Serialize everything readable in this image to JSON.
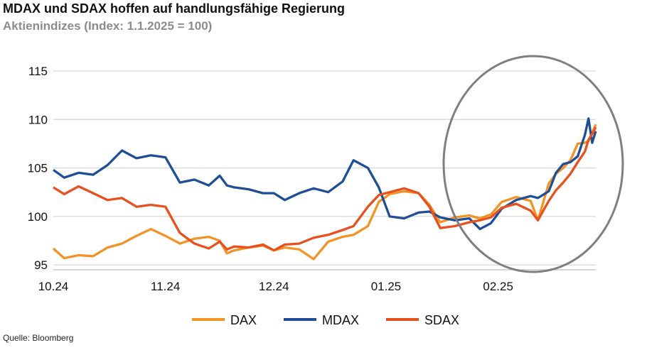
{
  "title": "MDAX und SDAX hoffen auf handlungsfähige Regierung",
  "subtitle": "Aktienindizes (Index: 1.1.2025 = 100)",
  "source": "Quelle: Bloomberg",
  "colors": {
    "DAX": "#f39325",
    "MDAX": "#1f4e96",
    "SDAX": "#e8501e",
    "grid": "#d9d9d9",
    "circle": "#7f7f7f"
  },
  "chart_data": {
    "type": "line",
    "title": "MDAX und SDAX hoffen auf handlungsfähige Regierung",
    "xlabel": "",
    "ylabel": "",
    "x_start": "2024-10-01",
    "x_end": "2025-02-28",
    "x_ticks": [
      {
        "date": "2024-10-01",
        "label": "10.24"
      },
      {
        "date": "2024-11-01",
        "label": "11.24"
      },
      {
        "date": "2024-12-01",
        "label": "12.24"
      },
      {
        "date": "2025-01-01",
        "label": "01.25"
      },
      {
        "date": "2025-02-01",
        "label": "02.25"
      }
    ],
    "y_ticks": [
      95,
      100,
      105,
      110,
      115
    ],
    "ylim": [
      94.5,
      115
    ],
    "grid": "horizontal",
    "legend": "bottom",
    "annotation": "ellipse highlighting February 2025",
    "series": [
      {
        "name": "DAX",
        "color": "#f39325",
        "points": [
          [
            "2024-10-01",
            96.7
          ],
          [
            "2024-10-04",
            95.7
          ],
          [
            "2024-10-08",
            96.0
          ],
          [
            "2024-10-12",
            95.9
          ],
          [
            "2024-10-16",
            96.8
          ],
          [
            "2024-10-20",
            97.2
          ],
          [
            "2024-10-24",
            98.0
          ],
          [
            "2024-10-28",
            98.7
          ],
          [
            "2024-11-01",
            98.0
          ],
          [
            "2024-11-05",
            97.2
          ],
          [
            "2024-11-09",
            97.7
          ],
          [
            "2024-11-13",
            97.9
          ],
          [
            "2024-11-16",
            97.5
          ],
          [
            "2024-11-18",
            96.2
          ],
          [
            "2024-11-20",
            96.5
          ],
          [
            "2024-11-24",
            96.8
          ],
          [
            "2024-11-28",
            97.0
          ],
          [
            "2024-12-01",
            96.5
          ],
          [
            "2024-12-04",
            96.8
          ],
          [
            "2024-12-08",
            96.6
          ],
          [
            "2024-12-12",
            95.6
          ],
          [
            "2024-12-16",
            97.4
          ],
          [
            "2024-12-20",
            97.9
          ],
          [
            "2024-12-23",
            98.1
          ],
          [
            "2024-12-27",
            99.0
          ],
          [
            "2024-12-30",
            101.5
          ],
          [
            "2025-01-02",
            102.3
          ],
          [
            "2025-01-06",
            102.6
          ],
          [
            "2025-01-10",
            102.4
          ],
          [
            "2025-01-13",
            101.2
          ],
          [
            "2025-01-16",
            99.4
          ],
          [
            "2025-01-20",
            99.9
          ],
          [
            "2025-01-24",
            100.1
          ],
          [
            "2025-01-27",
            99.8
          ],
          [
            "2025-01-30",
            100.2
          ],
          [
            "2025-02-02",
            101.5
          ],
          [
            "2025-02-06",
            102.0
          ],
          [
            "2025-02-10",
            101.6
          ],
          [
            "2025-02-12",
            99.6
          ],
          [
            "2025-02-15",
            103.4
          ],
          [
            "2025-02-17",
            104.4
          ],
          [
            "2025-02-19",
            105.0
          ],
          [
            "2025-02-21",
            105.8
          ],
          [
            "2025-02-23",
            107.5
          ],
          [
            "2025-02-25",
            107.6
          ],
          [
            "2025-02-26",
            107.8
          ],
          [
            "2025-02-27",
            108.6
          ],
          [
            "2025-02-28",
            109.5
          ]
        ]
      },
      {
        "name": "MDAX",
        "color": "#1f4e96",
        "points": [
          [
            "2024-10-01",
            104.8
          ],
          [
            "2024-10-04",
            104.0
          ],
          [
            "2024-10-08",
            104.5
          ],
          [
            "2024-10-12",
            104.3
          ],
          [
            "2024-10-16",
            105.3
          ],
          [
            "2024-10-20",
            106.8
          ],
          [
            "2024-10-24",
            106.0
          ],
          [
            "2024-10-28",
            106.3
          ],
          [
            "2024-11-01",
            106.1
          ],
          [
            "2024-11-05",
            103.5
          ],
          [
            "2024-11-09",
            103.8
          ],
          [
            "2024-11-13",
            103.2
          ],
          [
            "2024-11-16",
            104.2
          ],
          [
            "2024-11-18",
            103.2
          ],
          [
            "2024-11-20",
            103.0
          ],
          [
            "2024-11-24",
            102.8
          ],
          [
            "2024-11-28",
            102.4
          ],
          [
            "2024-12-01",
            102.4
          ],
          [
            "2024-12-04",
            101.7
          ],
          [
            "2024-12-08",
            102.4
          ],
          [
            "2024-12-12",
            102.9
          ],
          [
            "2024-12-16",
            102.5
          ],
          [
            "2024-12-20",
            103.6
          ],
          [
            "2024-12-23",
            105.8
          ],
          [
            "2024-12-27",
            105.0
          ],
          [
            "2024-12-30",
            103.0
          ],
          [
            "2025-01-02",
            100.0
          ],
          [
            "2025-01-06",
            99.8
          ],
          [
            "2025-01-10",
            100.4
          ],
          [
            "2025-01-13",
            100.5
          ],
          [
            "2025-01-16",
            99.9
          ],
          [
            "2025-01-20",
            99.6
          ],
          [
            "2025-01-24",
            99.8
          ],
          [
            "2025-01-27",
            98.7
          ],
          [
            "2025-01-30",
            99.3
          ],
          [
            "2025-02-02",
            100.8
          ],
          [
            "2025-02-06",
            101.7
          ],
          [
            "2025-02-10",
            102.1
          ],
          [
            "2025-02-12",
            101.9
          ],
          [
            "2025-02-15",
            102.6
          ],
          [
            "2025-02-17",
            104.5
          ],
          [
            "2025-02-19",
            105.4
          ],
          [
            "2025-02-21",
            105.6
          ],
          [
            "2025-02-23",
            106.2
          ],
          [
            "2025-02-25",
            108.4
          ],
          [
            "2025-02-26",
            110.1
          ],
          [
            "2025-02-27",
            107.6
          ],
          [
            "2025-02-28",
            108.8
          ]
        ]
      },
      {
        "name": "SDAX",
        "color": "#e8501e",
        "points": [
          [
            "2024-10-01",
            103.0
          ],
          [
            "2024-10-04",
            102.3
          ],
          [
            "2024-10-08",
            103.1
          ],
          [
            "2024-10-12",
            102.4
          ],
          [
            "2024-10-16",
            101.7
          ],
          [
            "2024-10-20",
            101.9
          ],
          [
            "2024-10-24",
            101.0
          ],
          [
            "2024-10-28",
            101.2
          ],
          [
            "2024-11-01",
            101.0
          ],
          [
            "2024-11-05",
            98.3
          ],
          [
            "2024-11-09",
            97.2
          ],
          [
            "2024-11-13",
            96.7
          ],
          [
            "2024-11-16",
            97.4
          ],
          [
            "2024-11-18",
            96.6
          ],
          [
            "2024-11-20",
            96.9
          ],
          [
            "2024-11-24",
            96.8
          ],
          [
            "2024-11-28",
            97.1
          ],
          [
            "2024-12-01",
            96.5
          ],
          [
            "2024-12-04",
            97.1
          ],
          [
            "2024-12-08",
            97.2
          ],
          [
            "2024-12-12",
            97.8
          ],
          [
            "2024-12-16",
            98.1
          ],
          [
            "2024-12-20",
            98.6
          ],
          [
            "2024-12-23",
            99.0
          ],
          [
            "2024-12-27",
            101.0
          ],
          [
            "2024-12-30",
            102.2
          ],
          [
            "2025-01-02",
            102.5
          ],
          [
            "2025-01-06",
            102.9
          ],
          [
            "2025-01-10",
            102.4
          ],
          [
            "2025-01-13",
            101.0
          ],
          [
            "2025-01-16",
            98.8
          ],
          [
            "2025-01-20",
            99.0
          ],
          [
            "2025-01-24",
            99.4
          ],
          [
            "2025-01-27",
            99.6
          ],
          [
            "2025-01-30",
            99.9
          ],
          [
            "2025-02-02",
            100.9
          ],
          [
            "2025-02-06",
            101.3
          ],
          [
            "2025-02-10",
            100.6
          ],
          [
            "2025-02-12",
            99.6
          ],
          [
            "2025-02-15",
            101.6
          ],
          [
            "2025-02-17",
            102.7
          ],
          [
            "2025-02-19",
            103.5
          ],
          [
            "2025-02-21",
            104.4
          ],
          [
            "2025-02-23",
            105.6
          ],
          [
            "2025-02-25",
            106.7
          ],
          [
            "2025-02-26",
            107.9
          ],
          [
            "2025-02-27",
            108.5
          ],
          [
            "2025-02-28",
            109.2
          ]
        ]
      }
    ]
  }
}
